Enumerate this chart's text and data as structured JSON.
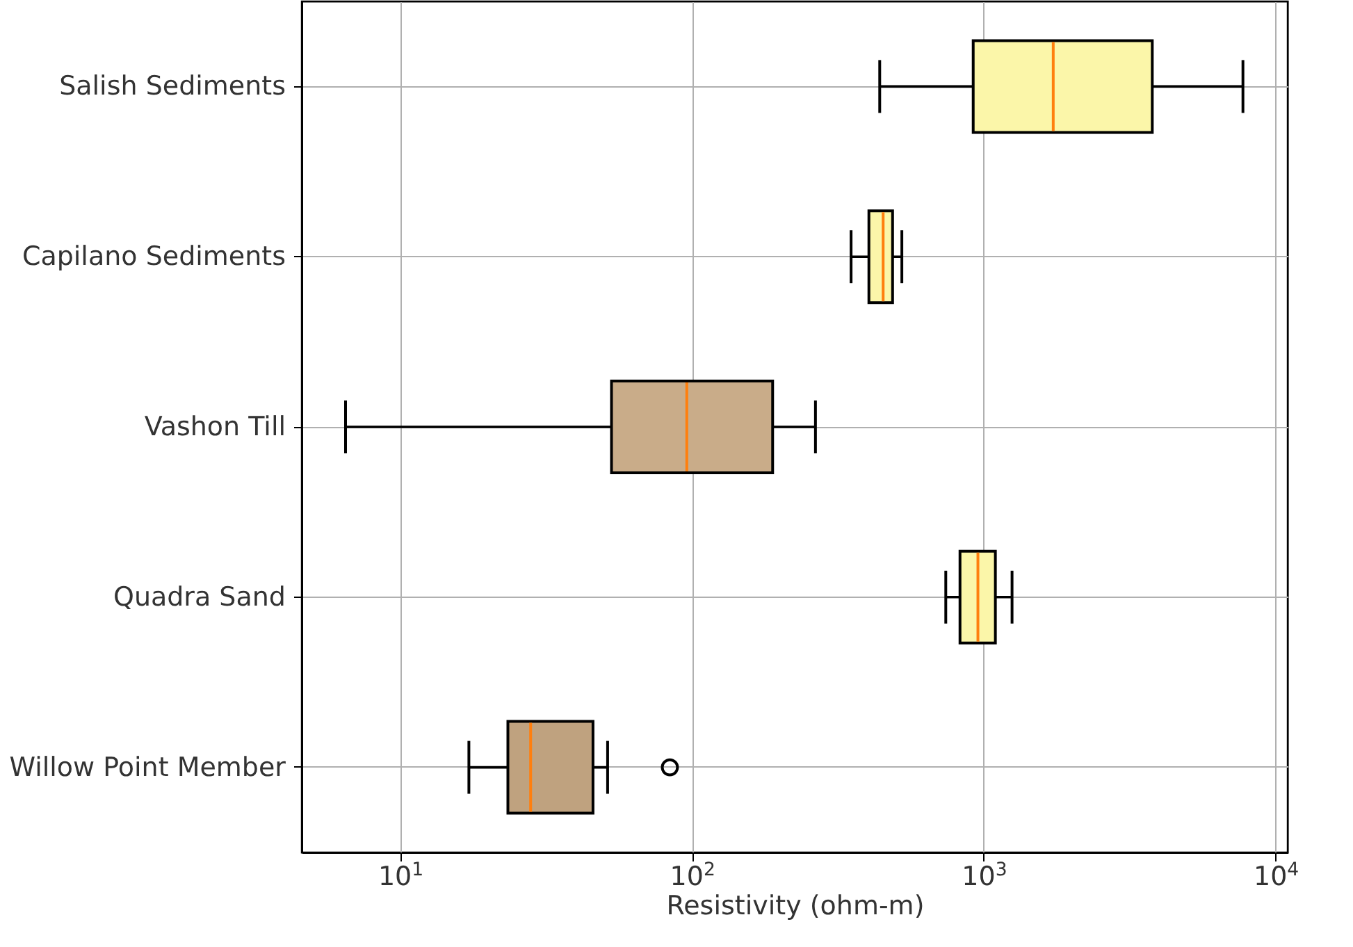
{
  "chart_data": {
    "type": "box",
    "xlabel": "Resistivity (ohm-m)",
    "categories": [
      "Salish Sediments",
      "Capilano Sediments",
      "Vashon Till",
      "Quadra Sand",
      "Willow Point Member"
    ],
    "boxes": [
      {
        "low": 440,
        "q1": 920,
        "median": 1730,
        "q3": 3780,
        "high": 7730
      },
      {
        "low": 351,
        "q1": 404,
        "median": 452,
        "q3": 487,
        "high": 524
      },
      {
        "low": 6.5,
        "q1": 53,
        "median": 96,
        "q3": 189,
        "high": 265
      },
      {
        "low": 741,
        "q1": 829,
        "median": 955,
        "q3": 1096,
        "high": 1250
      },
      {
        "low": 17.2,
        "q1": 23.4,
        "median": 28,
        "q3": 45.8,
        "high": 51.4,
        "outliers": [
          84
        ]
      }
    ],
    "colors": [
      "#fbf6a9",
      "#fbf6a9",
      "#c9ac89",
      "#fbf6a9",
      "#bfa27f"
    ],
    "orientation": "horizontal",
    "log": "x",
    "xlim": [
      4.6,
      11000
    ],
    "xticks": [
      {
        "value": 10,
        "label": "10$^{1}$"
      },
      {
        "value": 100,
        "label": "10$^{2}$"
      },
      {
        "value": 1000,
        "label": "10$^{3}$"
      },
      {
        "value": 10000,
        "label": "10$^{4}$"
      }
    ],
    "grid": true,
    "marker": "circle"
  }
}
